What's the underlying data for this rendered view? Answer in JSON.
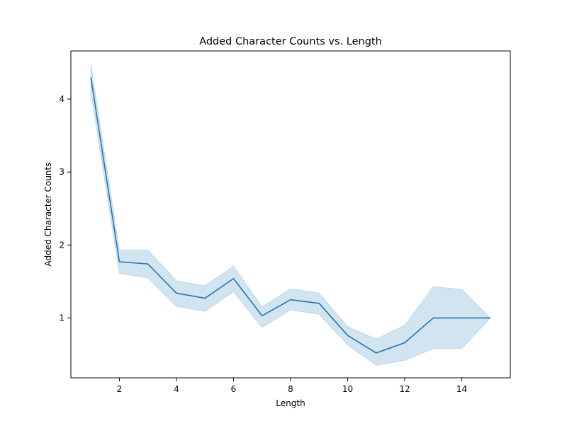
{
  "chart_data": {
    "type": "line",
    "title": "Added Character Counts vs. Length",
    "xlabel": "Length",
    "ylabel": "Added Character Counts",
    "xlim": [
      0.3,
      15.7
    ],
    "ylim": [
      0.18,
      4.66
    ],
    "xticks": [
      2,
      4,
      6,
      8,
      10,
      12,
      14
    ],
    "yticks": [
      1,
      2,
      3,
      4
    ],
    "grid": false,
    "legend": "none",
    "colors": {
      "line": "#1f77b4",
      "band": "#1f77b4",
      "axes": "#000000",
      "background": "#ffffff"
    },
    "series": [
      {
        "x": [
          1,
          2,
          3,
          4,
          5,
          6,
          7,
          8,
          9,
          10,
          11,
          12,
          13,
          14,
          15
        ],
        "y": [
          4.3,
          1.77,
          1.74,
          1.34,
          1.27,
          1.54,
          1.03,
          1.25,
          1.2,
          0.76,
          0.52,
          0.66,
          1.0,
          1.0,
          1.0
        ],
        "ci_lower": [
          4.1,
          1.61,
          1.55,
          1.16,
          1.09,
          1.36,
          0.87,
          1.11,
          1.05,
          0.63,
          0.35,
          0.42,
          0.58,
          0.58,
          1.0
        ],
        "ci_upper": [
          4.48,
          1.93,
          1.93,
          1.51,
          1.44,
          1.71,
          1.15,
          1.4,
          1.34,
          0.88,
          0.71,
          0.9,
          1.43,
          1.39,
          1.0
        ]
      }
    ]
  }
}
